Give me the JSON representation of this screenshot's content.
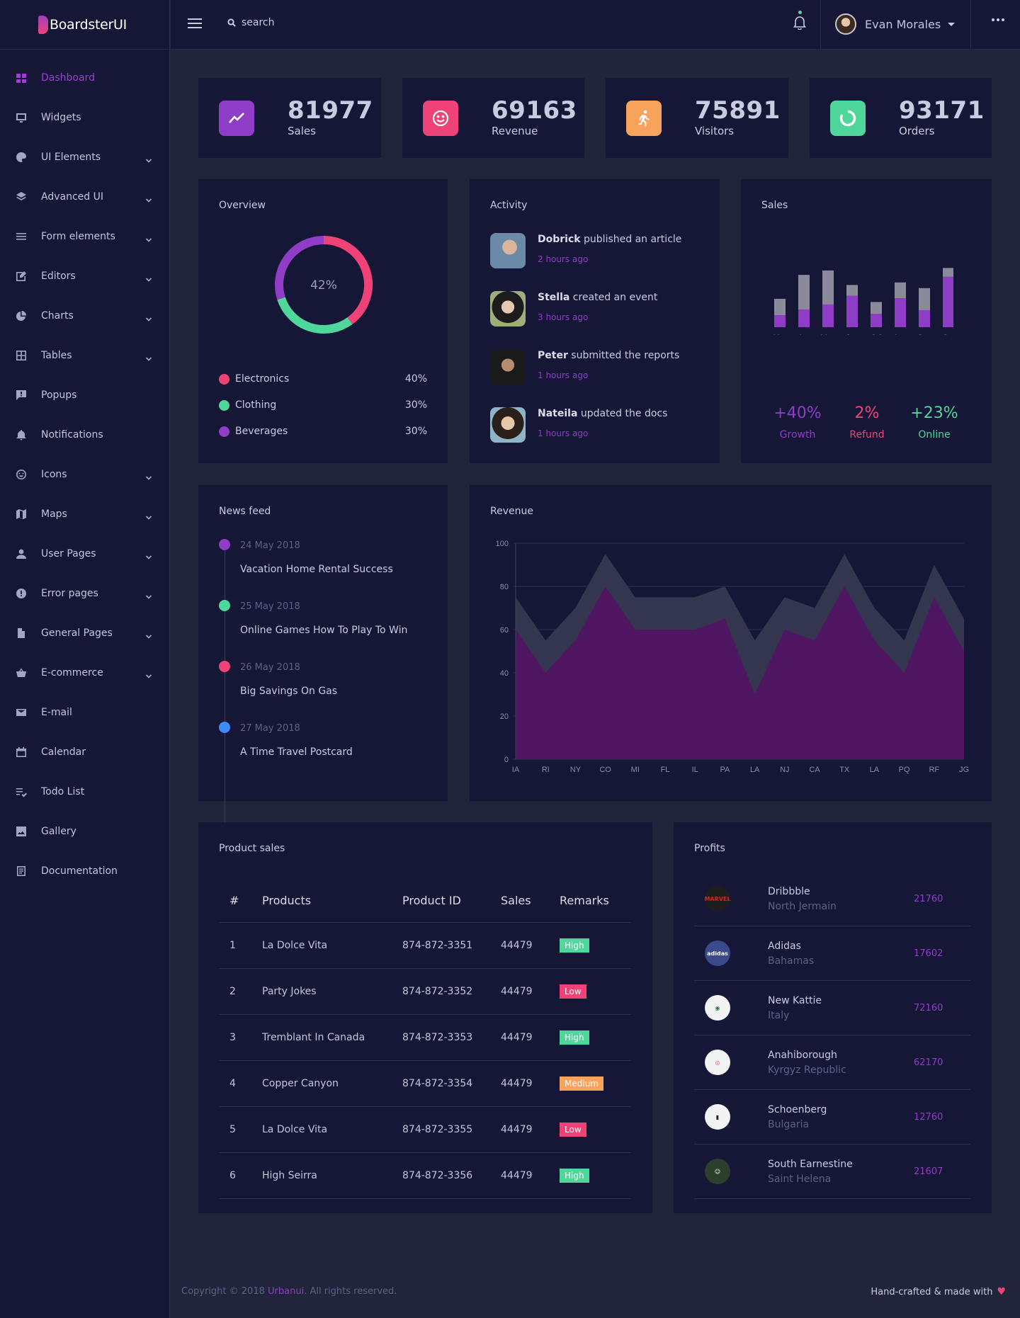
{
  "brand": {
    "name": "BoardsterUI"
  },
  "topbar": {
    "search_placeholder": "search",
    "user_name": "Evan Morales"
  },
  "sidebar": {
    "items": [
      {
        "label": "Dashboard",
        "icon": "dashboard-icon",
        "active": true,
        "chevron": false
      },
      {
        "label": "Widgets",
        "icon": "monitor-icon",
        "chevron": false
      },
      {
        "label": "UI Elements",
        "icon": "palette-icon",
        "chevron": true
      },
      {
        "label": "Advanced UI",
        "icon": "layers-icon",
        "chevron": true
      },
      {
        "label": "Form elements",
        "icon": "list-icon",
        "chevron": true
      },
      {
        "label": "Editors",
        "icon": "edit-icon",
        "chevron": true
      },
      {
        "label": "Charts",
        "icon": "pie-chart-icon",
        "chevron": true
      },
      {
        "label": "Tables",
        "icon": "grid-icon",
        "chevron": true
      },
      {
        "label": "Popups",
        "icon": "chat-bubble-icon",
        "chevron": false
      },
      {
        "label": "Notifications",
        "icon": "bell-icon",
        "chevron": false
      },
      {
        "label": "Icons",
        "icon": "smiley-icon",
        "chevron": true
      },
      {
        "label": "Maps",
        "icon": "map-icon",
        "chevron": true
      },
      {
        "label": "User Pages",
        "icon": "user-icon",
        "chevron": true
      },
      {
        "label": "Error pages",
        "icon": "alert-icon",
        "chevron": true
      },
      {
        "label": "General Pages",
        "icon": "file-icon",
        "chevron": true
      },
      {
        "label": "E-commerce",
        "icon": "basket-icon",
        "chevron": true
      },
      {
        "label": "E-mail",
        "icon": "mail-icon",
        "chevron": false
      },
      {
        "label": "Calendar",
        "icon": "calendar-icon",
        "chevron": false
      },
      {
        "label": "Todo List",
        "icon": "checklist-icon",
        "chevron": false
      },
      {
        "label": "Gallery",
        "icon": "image-icon",
        "chevron": false
      },
      {
        "label": "Documentation",
        "icon": "document-icon",
        "chevron": false
      }
    ]
  },
  "stats": [
    {
      "value": "81977",
      "label": "Sales",
      "color": "#8f3cc7",
      "icon": "trending-up-icon"
    },
    {
      "value": "69163",
      "label": "Revenue",
      "color": "#ef4277",
      "icon": "smiley-icon"
    },
    {
      "value": "75891",
      "label": "Visitors",
      "color": "#f7a35c",
      "icon": "runner-icon"
    },
    {
      "value": "93171",
      "label": "Orders",
      "color": "#4ed69b",
      "icon": "circle-progress-icon"
    }
  ],
  "overview": {
    "title": "Overview",
    "center_label": "42%",
    "legend": [
      {
        "label": "Electronics",
        "value": "40%",
        "color": "#ef4277"
      },
      {
        "label": "Clothing",
        "value": "30%",
        "color": "#4ed69b"
      },
      {
        "label": "Beverages",
        "value": "30%",
        "color": "#8f3cc7"
      }
    ]
  },
  "activity": {
    "title": "Activity",
    "items": [
      {
        "name": "Dobrick",
        "action": " published an article",
        "time": "2 hours ago"
      },
      {
        "name": "Stella",
        "action": " created an event",
        "time": "3 hours ago"
      },
      {
        "name": "Peter",
        "action": " submitted the reports",
        "time": "1 hours ago"
      },
      {
        "name": "Nateila",
        "action": " updated the docs",
        "time": "1 hours ago"
      }
    ]
  },
  "sales_card": {
    "title": "Sales",
    "metrics": [
      {
        "value": "+40%",
        "label": "Growth",
        "color": "#8f3cc7"
      },
      {
        "value": "2%",
        "label": "Refund",
        "color": "#ef4277"
      },
      {
        "value": "+23%",
        "label": "Online",
        "color": "#4ed69b"
      }
    ]
  },
  "news_feed": {
    "title": "News feed",
    "items": [
      {
        "date": "24 May 2018",
        "title": "Vacation Home Rental Success",
        "color": "#8f3cc7"
      },
      {
        "date": "25 May 2018",
        "title": "Online Games How To Play To Win",
        "color": "#4ed69b"
      },
      {
        "date": "26 May 2018",
        "title": "Big Savings On Gas",
        "color": "#ef4277"
      },
      {
        "date": "27 May 2018",
        "title": "A Time Travel Postcard",
        "color": "#3b8cf5"
      }
    ]
  },
  "revenue": {
    "title": "Revenue"
  },
  "product_sales": {
    "title": "Product sales",
    "headers": [
      "#",
      "Products",
      "Product ID",
      "Sales",
      "Remarks"
    ],
    "rows": [
      {
        "n": "1",
        "product": "La Dolce Vita",
        "id": "874-872-3351",
        "sales": "44479",
        "remark": "High",
        "color": "#4ed69b"
      },
      {
        "n": "2",
        "product": "Party Jokes",
        "id": "874-872-3352",
        "sales": "44479",
        "remark": "Low",
        "color": "#ef4277"
      },
      {
        "n": "3",
        "product": "Tremblant In Canada",
        "id": "874-872-3353",
        "sales": "44479",
        "remark": "High",
        "color": "#4ed69b"
      },
      {
        "n": "4",
        "product": "Copper Canyon",
        "id": "874-872-3354",
        "sales": "44479",
        "remark": "Medium",
        "color": "#f7a35c"
      },
      {
        "n": "5",
        "product": "La Dolce Vita",
        "id": "874-872-3355",
        "sales": "44479",
        "remark": "Low",
        "color": "#ef4277"
      },
      {
        "n": "6",
        "product": "High Seirra",
        "id": "874-872-3356",
        "sales": "44479",
        "remark": "High",
        "color": "#4ed69b"
      }
    ]
  },
  "profits": {
    "title": "Profits",
    "items": [
      {
        "name": "Dribbble",
        "location": "North Jermain",
        "value": "21760",
        "logo": "MARVEL"
      },
      {
        "name": "Adidas",
        "location": "Bahamas",
        "value": "17602",
        "logo": "adidas"
      },
      {
        "name": "New Kattie",
        "location": "Italy",
        "value": "72160",
        "logo": "flag-logo"
      },
      {
        "name": "Anahiborough",
        "location": "Kyrgyz Republic",
        "value": "62170",
        "logo": "dribbble-logo"
      },
      {
        "name": "Schoenberg",
        "location": "Bulgaria",
        "value": "12760",
        "logo": "battery-logo"
      },
      {
        "name": "South Earnestine",
        "location": "Saint Helena",
        "value": "21607",
        "logo": "avatar-logo"
      }
    ]
  },
  "footer": {
    "copyright": "Copyright © 2018 ",
    "company": "Urbanui",
    "rights": ". All rights reserved.",
    "tagline": "Hand-crafted & made with"
  },
  "chart_data": [
    {
      "type": "pie",
      "title": "Overview",
      "categories": [
        "Electronics",
        "Clothing",
        "Beverages"
      ],
      "values": [
        40,
        30,
        30
      ],
      "center_label": "42%",
      "colors": [
        "#ef4277",
        "#4ed69b",
        "#8f3cc7"
      ]
    },
    {
      "type": "bar",
      "title": "Sales",
      "categories": [
        "Mar",
        "Apr",
        "May",
        "Jun",
        "Jul",
        "Aug",
        "Sep",
        "Oct"
      ],
      "series": [
        {
          "values": [
            19,
            28,
            36,
            50,
            21,
            46,
            27,
            80
          ],
          "color": "#8f3cc7"
        },
        {
          "values": [
            26,
            55,
            54,
            17,
            19,
            25,
            35,
            14
          ],
          "color": "#8a8a9a"
        }
      ],
      "stacked": true
    },
    {
      "type": "area",
      "title": "Revenue",
      "categories": [
        "IA",
        "RI",
        "NY",
        "CO",
        "MI",
        "FL",
        "IL",
        "PA",
        "LA",
        "NJ",
        "CA",
        "TX",
        "LA",
        "PQ",
        "RF",
        "JG"
      ],
      "ylim": [
        0,
        100
      ],
      "yticks": [
        0,
        20,
        40,
        60,
        80,
        100
      ],
      "grid": true,
      "series": [
        {
          "values": [
            75,
            55,
            70,
            95,
            75,
            75,
            75,
            80,
            55,
            75,
            70,
            95,
            70,
            55,
            90,
            65
          ],
          "color": "#34354f"
        },
        {
          "values": [
            60,
            40,
            55,
            80,
            60,
            60,
            60,
            65,
            30,
            60,
            55,
            80,
            55,
            40,
            75,
            50
          ],
          "color": "#4f1761"
        }
      ]
    }
  ]
}
